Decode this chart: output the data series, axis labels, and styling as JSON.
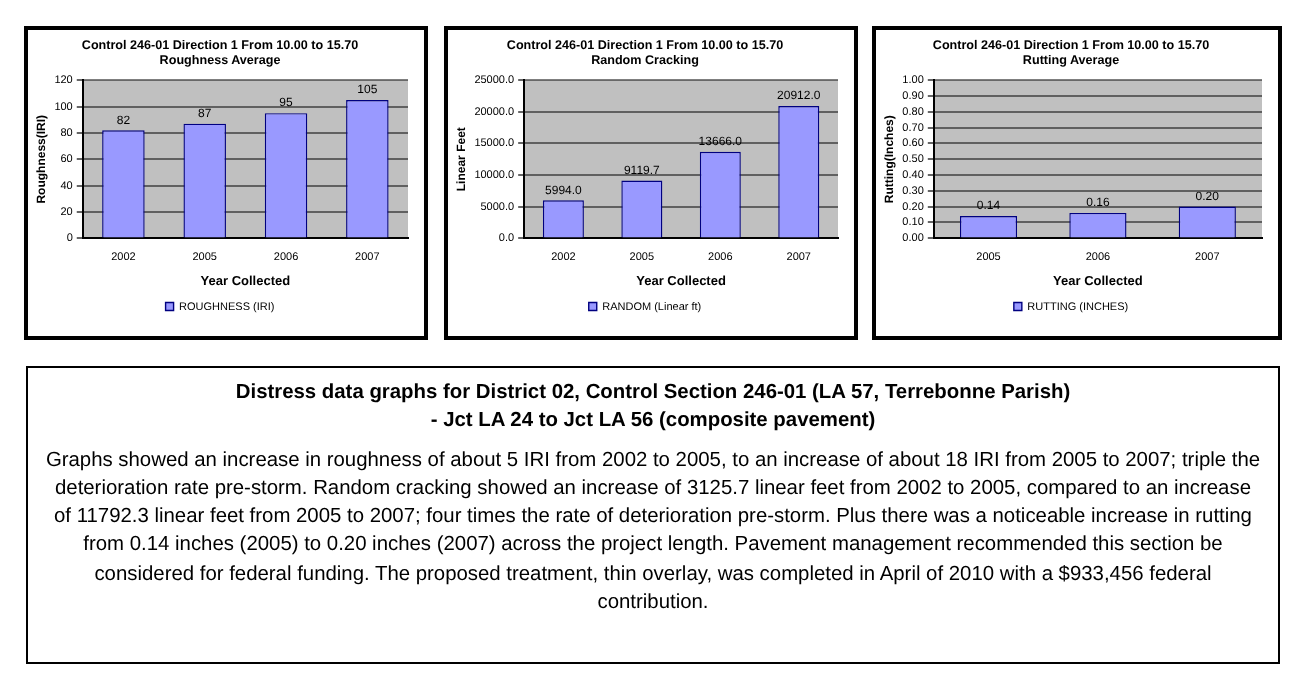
{
  "chart_data": [
    {
      "type": "bar",
      "title": "Control 246-01 Direction 1 From 10.00 to 15.70\nRoughness Average",
      "xlabel": "Year Collected",
      "ylabel": "Roughness(IRI)",
      "categories": [
        "2002",
        "2005",
        "2006",
        "2007"
      ],
      "series": [
        {
          "name": "ROUGHNESS (IRI)",
          "color": "#9999ff",
          "values": [
            82,
            87,
            95,
            105
          ]
        }
      ],
      "ylim": [
        0,
        120
      ],
      "yticks": [
        0,
        20,
        40,
        60,
        80,
        100,
        120
      ],
      "grid": "y",
      "legend": "bottom",
      "data_labels": true
    },
    {
      "type": "bar",
      "title": "Control 246-01 Direction 1 From 10.00 to 15.70\nRandom Cracking",
      "xlabel": "Year Collected",
      "ylabel": "Linear Feet",
      "categories": [
        "2002",
        "2005",
        "2006",
        "2007"
      ],
      "series": [
        {
          "name": "RANDOM (Linear ft)",
          "color": "#9999ff",
          "values": [
            5994.0,
            9119.7,
            13666.0,
            20912.0
          ],
          "value_labels": [
            "5994.0",
            "9119.7",
            "13666.0",
            "20912.0"
          ]
        }
      ],
      "ylim": [
        0,
        25000
      ],
      "yticks": [
        {
          "value": 0,
          "label": "0.0"
        },
        {
          "value": 5000,
          "label": "5000.0"
        },
        {
          "value": 10000,
          "label": "10000.0"
        },
        {
          "value": 15000,
          "label": "15000.0"
        },
        {
          "value": 20000,
          "label": "20000.0"
        },
        {
          "value": 25000,
          "label": "25000.0"
        }
      ],
      "grid": "y",
      "legend": "bottom"
    },
    {
      "type": "bar",
      "title": "Control 246-01 Direction 1 From 10.00 to 15.70\nRutting Average",
      "xlabel": "Year Collected",
      "ylabel": "Rutting(Inches)",
      "categories": [
        "2005",
        "2006",
        "2007"
      ],
      "series": [
        {
          "name": "RUTTING (INCHES)",
          "color": "#9999ff",
          "values": [
            0.14,
            0.16,
            0.2
          ],
          "value_labels": [
            "0.14",
            "0.16",
            "0.20"
          ]
        }
      ],
      "ylim": [
        0,
        1
      ],
      "yticks": [
        {
          "value": 0,
          "label": "0.00"
        },
        {
          "value": 0.1,
          "label": "0.10"
        },
        {
          "value": 0.2,
          "label": "0.20"
        },
        {
          "value": 0.3,
          "label": "0.30"
        },
        {
          "value": 0.4,
          "label": "0.40"
        },
        {
          "value": 0.5,
          "label": "0.50"
        },
        {
          "value": 0.6,
          "label": "0.60"
        },
        {
          "value": 0.7,
          "label": "0.70"
        },
        {
          "value": 0.8,
          "label": "0.80"
        },
        {
          "value": 0.9,
          "label": "0.90"
        },
        {
          "value": 1,
          "label": "1.00"
        }
      ],
      "grid": "y",
      "legend": "bottom"
    },
    {
      "type": "other",
      "title": "Distress data graphs for District 02, Control Section 246-01 (LA 57, Terrebonne Parish)\n- Jct LA 24 to Jct LA 56 (composite pavement)",
      "annotations": [
        "Graphs showed an increase in roughness of about 5 IRI from 2002 to 2005, to an increase of about 18 IRI from 2005 to 2007; triple the deterioration rate pre-storm. Random cracking showed an increase of 3125.7 linear feet from 2002 to 2005, compared to an increase of 11792.3 linear feet from 2005 to 2007; four times the rate of deterioration pre-storm. Plus there was a noticeable increase in rutting from 0.14 inches (2005) to 0.20 inches (2007) across the project length. Pavement management recommended this section be considered for federal funding. The proposed treatment, thin overlay, was completed in April of 2010 with a $933,456 federal contribution."
      ]
    }
  ]
}
